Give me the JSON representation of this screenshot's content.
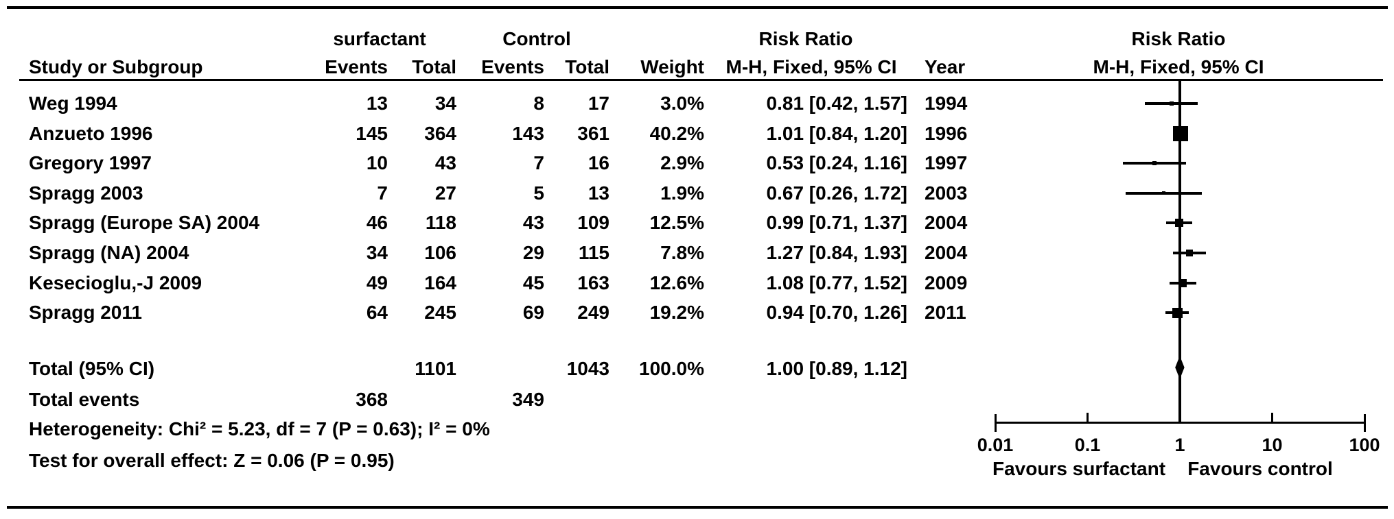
{
  "header": {
    "col_study": "Study or Subgroup",
    "group1": "surfactant",
    "group2": "Control",
    "col_events": "Events",
    "col_total": "Total",
    "col_weight": "Weight",
    "rr_title": "Risk Ratio",
    "rr_sub": "M-H, Fixed, 95% CI",
    "col_year": "Year",
    "plot_title": "Risk Ratio",
    "plot_sub": "M-H, Fixed, 95% CI"
  },
  "chart_data": {
    "type": "forest",
    "effect_measure": "Risk Ratio, M-H, Fixed, 95% CI",
    "x_scale": "log",
    "x_ticks": [
      0.01,
      0.1,
      1,
      10,
      100
    ],
    "x_tick_labels": [
      "0.01",
      "0.1",
      "1",
      "10",
      "100"
    ],
    "favours_left": "Favours surfactant",
    "favours_right": "Favours control",
    "studies": [
      {
        "name": "Weg 1994",
        "events1": "13",
        "total1": "34",
        "events2": "8",
        "total2": "17",
        "weight": "3.0%",
        "ci_text": "0.81 [0.42, 1.57]",
        "year": "1994",
        "rr": 0.81,
        "lo": 0.42,
        "hi": 1.57,
        "weight_pct": 3.0
      },
      {
        "name": "Anzueto 1996",
        "events1": "145",
        "total1": "364",
        "events2": "143",
        "total2": "361",
        "weight": "40.2%",
        "ci_text": "1.01 [0.84, 1.20]",
        "year": "1996",
        "rr": 1.01,
        "lo": 0.84,
        "hi": 1.2,
        "weight_pct": 40.2
      },
      {
        "name": "Gregory 1997",
        "events1": "10",
        "total1": "43",
        "events2": "7",
        "total2": "16",
        "weight": "2.9%",
        "ci_text": "0.53 [0.24, 1.16]",
        "year": "1997",
        "rr": 0.53,
        "lo": 0.24,
        "hi": 1.16,
        "weight_pct": 2.9
      },
      {
        "name": "Spragg 2003",
        "events1": "7",
        "total1": "27",
        "events2": "5",
        "total2": "13",
        "weight": "1.9%",
        "ci_text": "0.67 [0.26, 1.72]",
        "year": "2003",
        "rr": 0.67,
        "lo": 0.26,
        "hi": 1.72,
        "weight_pct": 1.9
      },
      {
        "name": "Spragg (Europe SA) 2004",
        "events1": "46",
        "total1": "118",
        "events2": "43",
        "total2": "109",
        "weight": "12.5%",
        "ci_text": "0.99 [0.71, 1.37]",
        "year": "2004",
        "rr": 0.99,
        "lo": 0.71,
        "hi": 1.37,
        "weight_pct": 12.5
      },
      {
        "name": "Spragg (NA) 2004",
        "events1": "34",
        "total1": "106",
        "events2": "29",
        "total2": "115",
        "weight": "7.8%",
        "ci_text": "1.27 [0.84, 1.93]",
        "year": "2004",
        "rr": 1.27,
        "lo": 0.84,
        "hi": 1.93,
        "weight_pct": 7.8
      },
      {
        "name": "Kesecioglu,-J 2009",
        "events1": "49",
        "total1": "164",
        "events2": "45",
        "total2": "163",
        "weight": "12.6%",
        "ci_text": "1.08 [0.77, 1.52]",
        "year": "2009",
        "rr": 1.08,
        "lo": 0.77,
        "hi": 1.52,
        "weight_pct": 12.6
      },
      {
        "name": "Spragg 2011",
        "events1": "64",
        "total1": "245",
        "events2": "69",
        "total2": "249",
        "weight": "19.2%",
        "ci_text": "0.94 [0.70, 1.26]",
        "year": "2011",
        "rr": 0.94,
        "lo": 0.7,
        "hi": 1.26,
        "weight_pct": 19.2
      }
    ],
    "total": {
      "label": "Total (95% CI)",
      "total1": "1101",
      "total2": "1043",
      "weight": "100.0%",
      "ci_text": "1.00 [0.89, 1.12]",
      "rr": 1.0,
      "lo": 0.89,
      "hi": 1.12
    },
    "total_events": {
      "label": "Total events",
      "events1": "368",
      "events2": "349"
    },
    "heterogeneity": "Heterogeneity: Chi² = 5.23, df = 7 (P = 0.63); I² = 0%",
    "overall_effect": "Test for overall effect: Z = 0.06 (P = 0.95)"
  }
}
